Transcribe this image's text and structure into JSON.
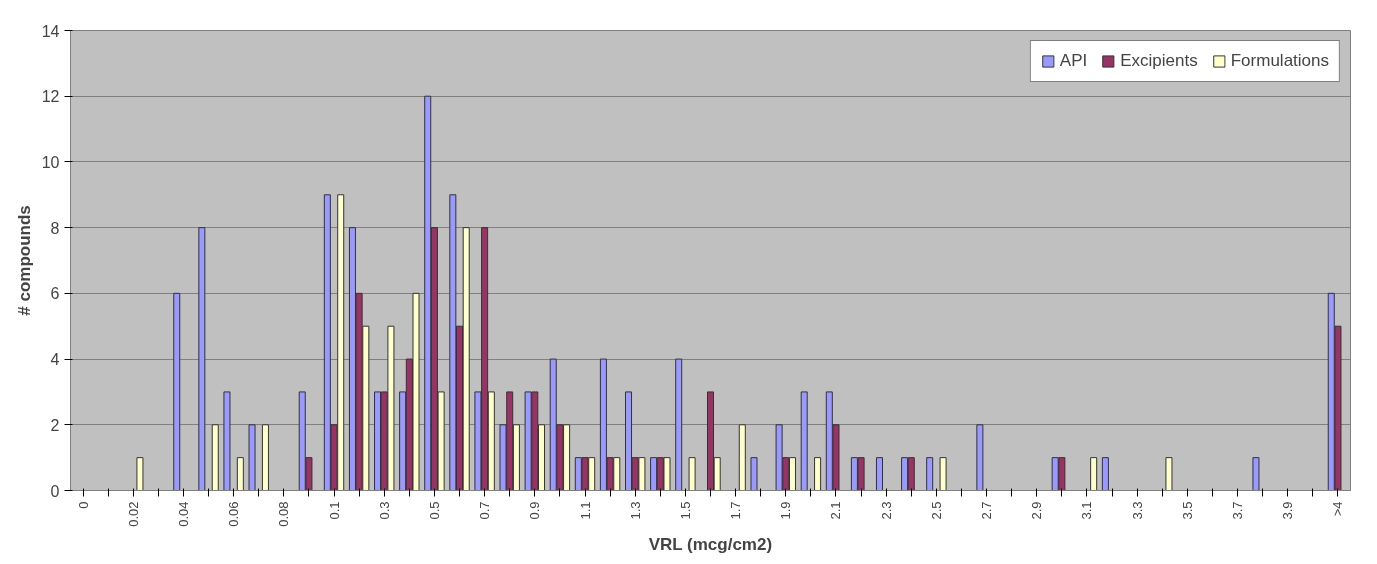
{
  "chart_data": {
    "type": "bar",
    "xlabel": "VRL (mcg/cm2)",
    "ylabel": "# compounds",
    "categories": [
      "0",
      null,
      "0.02",
      null,
      "0.04",
      null,
      "0.06",
      null,
      "0.08",
      null,
      "0.1",
      null,
      "0.3",
      null,
      "0.5",
      null,
      "0.7",
      null,
      "0.9",
      null,
      "1.1",
      null,
      "1.3",
      null,
      "1.5",
      null,
      "1.7",
      null,
      "1.9",
      null,
      "2.1",
      null,
      "2.3",
      null,
      "2.5",
      null,
      "2.7",
      null,
      "2.9",
      null,
      "3.1",
      null,
      "3.3",
      null,
      "3.5",
      null,
      "3.7",
      null,
      "3.9",
      null,
      ">4"
    ],
    "series": [
      {
        "name": "API",
        "color": "#9999ff",
        "values": [
          null,
          null,
          null,
          null,
          6,
          8,
          3,
          2,
          null,
          3,
          9,
          8,
          3,
          3,
          12,
          9,
          3,
          2,
          3,
          4,
          1,
          4,
          3,
          1,
          4,
          null,
          null,
          1,
          2,
          3,
          3,
          1,
          1,
          1,
          1,
          null,
          2,
          null,
          null,
          1,
          null,
          1,
          null,
          null,
          null,
          null,
          null,
          1,
          null,
          null,
          6
        ]
      },
      {
        "name": "Excipients",
        "color": "#993366",
        "values": [
          null,
          null,
          null,
          null,
          null,
          null,
          null,
          null,
          null,
          1,
          2,
          6,
          3,
          4,
          8,
          5,
          8,
          3,
          3,
          2,
          1,
          1,
          1,
          1,
          null,
          3,
          null,
          null,
          1,
          null,
          2,
          1,
          null,
          1,
          null,
          null,
          null,
          null,
          null,
          1,
          null,
          null,
          null,
          null,
          null,
          null,
          null,
          null,
          null,
          null,
          5
        ]
      },
      {
        "name": "Formulations",
        "color": "#ffffcc",
        "values": [
          null,
          null,
          1,
          null,
          null,
          2,
          1,
          2,
          null,
          null,
          9,
          5,
          5,
          6,
          3,
          8,
          3,
          2,
          2,
          2,
          1,
          1,
          1,
          1,
          1,
          1,
          2,
          null,
          1,
          1,
          null,
          null,
          null,
          null,
          1,
          null,
          null,
          null,
          null,
          null,
          1,
          null,
          null,
          1,
          null,
          null,
          null,
          null,
          null,
          null,
          null
        ]
      }
    ],
    "ylim": [
      0,
      14
    ],
    "yticks": [
      0,
      2,
      4,
      6,
      8,
      10,
      12,
      14
    ],
    "grid": "y",
    "legend": "top right"
  }
}
